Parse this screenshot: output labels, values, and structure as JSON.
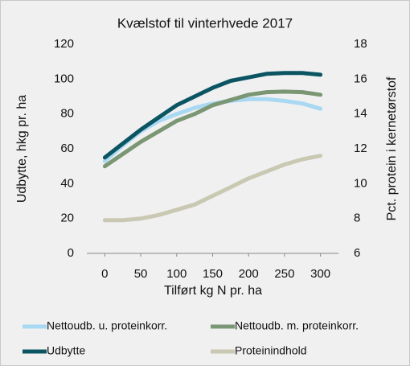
{
  "chart_data": {
    "type": "line",
    "title": "Kvælstof til vinterhvede 2017",
    "x_label": "Tilført kg N pr. ha",
    "y_label": "Udbytte, hkg pr. ha",
    "y2_label": "Pct. protein i kernetørstof",
    "x": [
      0,
      25,
      50,
      75,
      100,
      125,
      150,
      175,
      200,
      225,
      250,
      275,
      300
    ],
    "series": [
      {
        "name": "Nettoudb. u. proteinkorr.",
        "color": "#a9d8f2",
        "values": [
          53,
          62,
          70,
          76,
          80,
          83.5,
          86,
          87.5,
          88.5,
          88.5,
          87.5,
          86,
          83
        ]
      },
      {
        "name": "Nettoudb. m. proteinkorr.",
        "color": "#7a9673",
        "values": [
          50,
          57,
          64,
          70,
          76,
          80,
          85,
          88,
          91,
          92.5,
          92.8,
          92.5,
          91
        ]
      },
      {
        "name": "Udbytte",
        "color": "#0b5563",
        "values": [
          55,
          63,
          71,
          78,
          85,
          90,
          95,
          99,
          101,
          103,
          103.5,
          103.5,
          102.5
        ]
      },
      {
        "name": "Proteinindhold",
        "color": "#c9c8b2",
        "axis": "y2",
        "values": [
          7.9,
          7.9,
          8.0,
          8.2,
          8.5,
          8.8,
          9.3,
          9.8,
          10.3,
          10.7,
          11.1,
          11.4,
          11.6
        ]
      }
    ],
    "xlim": [
      -25,
      325
    ],
    "xticks": [
      0,
      50,
      100,
      150,
      200,
      250,
      300
    ],
    "ylim": [
      0,
      120
    ],
    "yticks": [
      0,
      20,
      40,
      60,
      80,
      100,
      120
    ],
    "y2lim": [
      6,
      18
    ],
    "y2ticks": [
      6,
      8,
      10,
      12,
      14,
      16,
      18
    ]
  }
}
